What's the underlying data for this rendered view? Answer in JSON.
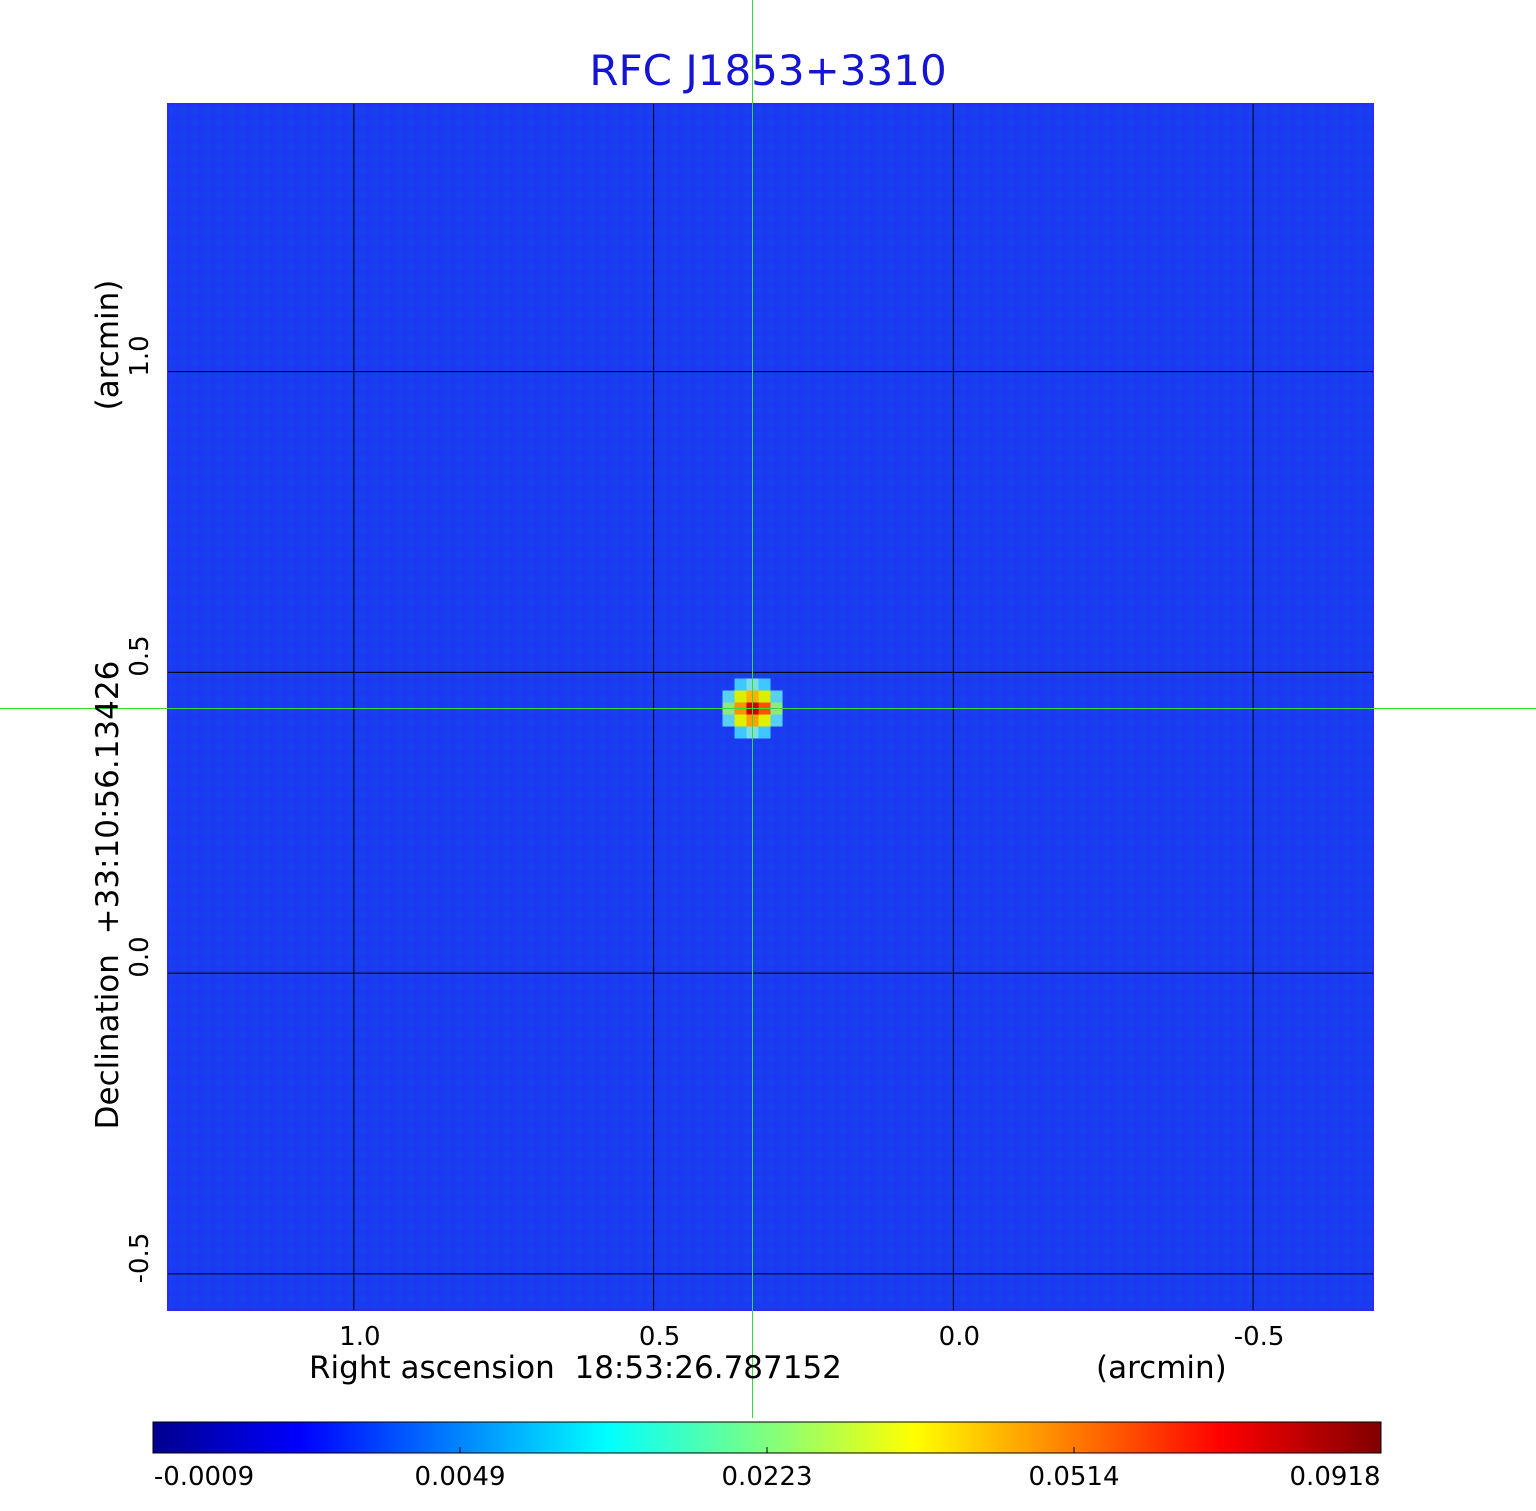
{
  "chart_data": {
    "type": "heatmap",
    "title": "RFC J1853+3310",
    "xlabel": "Right ascension  18:53:26.787152",
    "xunit": "(arcmin)",
    "ylabel": "Declination  +33:10:56.13426",
    "yunit": "(arcmin)",
    "x_ticks": [
      "1.0",
      "0.5",
      "0.0",
      "-0.5"
    ],
    "x_tick_values": [
      1.0,
      0.5,
      0.0,
      -0.5
    ],
    "y_ticks": [
      "1.0",
      "0.5",
      "0.0",
      "-0.5"
    ],
    "y_tick_values": [
      1.0,
      0.5,
      0.0,
      -0.5
    ],
    "xlim": [
      1.31,
      -0.7
    ],
    "ylim": [
      -0.56,
      1.445
    ],
    "grid": true,
    "source": {
      "x": 0.335,
      "y": 0.44,
      "peak": 0.0918
    },
    "crosshair": {
      "x": 0.335,
      "y": 0.44,
      "color": "#33dd33"
    },
    "background_level": -0.0003,
    "colorbar": {
      "ticks": [
        "-0.0009",
        "0.0049",
        "0.0223",
        "0.0514",
        "0.0918"
      ],
      "colormap": "jet"
    },
    "colors": {
      "title": "#1414d2",
      "background": "#1a3cf0",
      "grid": "#000000"
    }
  }
}
